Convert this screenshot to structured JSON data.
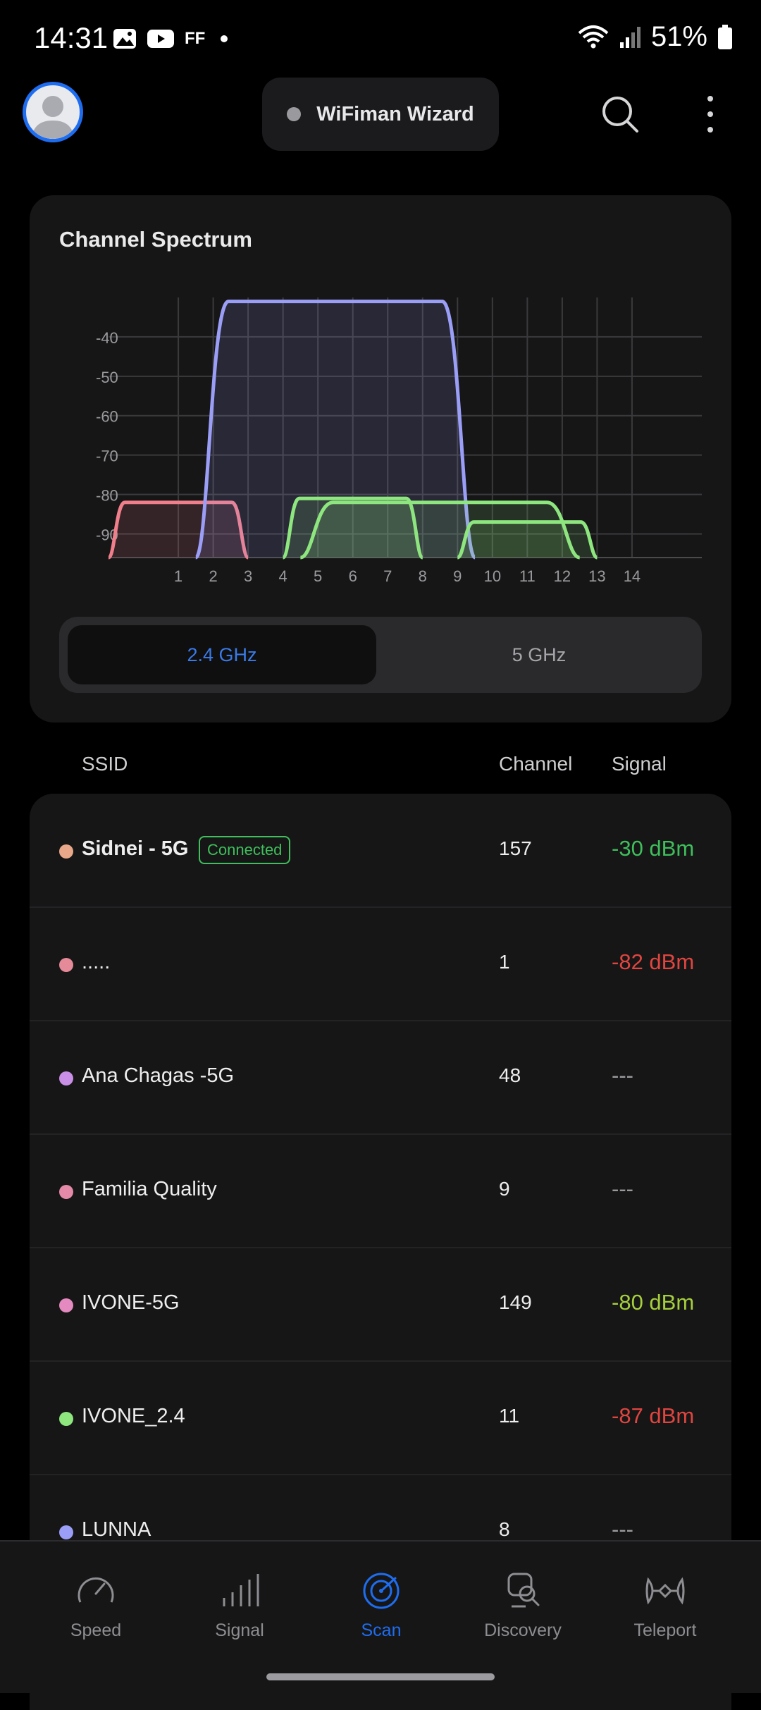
{
  "status_bar": {
    "time": "14:31",
    "ff_label": "FF",
    "battery": "51%",
    "icons": [
      "gallery-icon",
      "youtube-icon",
      "ff-icon",
      "dot-icon",
      "wifi-icon",
      "cell-signal-icon",
      "battery-icon"
    ]
  },
  "header": {
    "wizard_label": "WiFiman Wizard",
    "icons": [
      "avatar",
      "search-icon",
      "more-vert-icon"
    ]
  },
  "spectrum": {
    "title": "Channel Spectrum",
    "bands": {
      "selected": "2.4 GHz",
      "other": "5 GHz"
    }
  },
  "chart_data": {
    "type": "area",
    "title": "Channel Spectrum",
    "xlabel": "",
    "ylabel": "",
    "x_ticks": [
      "1",
      "2",
      "3",
      "4",
      "5",
      "6",
      "7",
      "8",
      "9",
      "10",
      "11",
      "12",
      "13",
      "14"
    ],
    "y_ticks": [
      "-40",
      "-50",
      "-60",
      "-70",
      "-80",
      "-90"
    ],
    "ylim": [
      -96,
      -30
    ],
    "xlim": [
      -1,
      16
    ],
    "grid": true,
    "series": [
      {
        "color": "#f07f8b",
        "center": 1,
        "width": 4,
        "top": -82
      },
      {
        "color": "#9b9ef7",
        "center": 5.5,
        "width": 8,
        "top": -31
      },
      {
        "color": "#8ee67f",
        "center": 6,
        "width": 4,
        "top": -81
      },
      {
        "color": "#8ee67f",
        "center": 8.5,
        "width": 8,
        "top": -82
      },
      {
        "color": "#8ee67f",
        "center": 11,
        "width": 4,
        "top": -87
      }
    ]
  },
  "table": {
    "headers": {
      "ssid": "SSID",
      "channel": "Channel",
      "signal": "Signal"
    },
    "rows": [
      {
        "ssid": "Sidnei - 5G",
        "badge": "Connected",
        "channel": "157",
        "signal": "-30 dBm",
        "dot_color": "#e9a88a",
        "signal_color": "#3fbf5b"
      },
      {
        "ssid": ".....",
        "channel": "1",
        "signal": "-82 dBm",
        "dot_color": "#e58a98",
        "signal_color": "#e0453f"
      },
      {
        "ssid": "Ana Chagas -5G",
        "channel": "48",
        "signal": "---",
        "dot_color": "#c98ee6",
        "signal_color": "#9a9a9e"
      },
      {
        "ssid": "Familia Quality",
        "channel": "9",
        "signal": "---",
        "dot_color": "#e48aa8",
        "signal_color": "#9a9a9e"
      },
      {
        "ssid": "IVONE-5G",
        "channel": "149",
        "signal": "-80 dBm",
        "dot_color": "#e48ac0",
        "signal_color": "#a6cf3c"
      },
      {
        "ssid": "IVONE_2.4",
        "channel": "11",
        "signal": "-87 dBm",
        "dot_color": "#8ee67f",
        "signal_color": "#e0453f"
      },
      {
        "ssid": "LUNNA",
        "channel": "8",
        "signal": "---",
        "dot_color": "#9b9ef7",
        "signal_color": "#9a9a9e"
      }
    ]
  },
  "nav": {
    "items": [
      {
        "label": "Speed",
        "icon": "speed-icon"
      },
      {
        "label": "Signal",
        "icon": "signal-icon"
      },
      {
        "label": "Scan",
        "icon": "scan-icon",
        "active": true
      },
      {
        "label": "Discovery",
        "icon": "discovery-icon"
      },
      {
        "label": "Teleport",
        "icon": "teleport-icon"
      }
    ],
    "active_color": "#1e6df0"
  }
}
